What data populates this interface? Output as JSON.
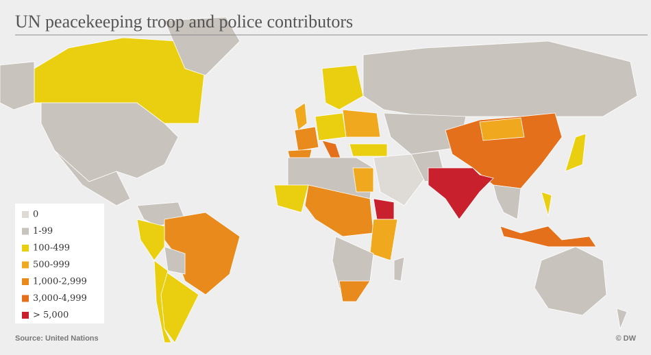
{
  "title": "UN peacekeeping troop and police contributors",
  "legend": [
    {
      "label": "0",
      "color": "#dedad5"
    },
    {
      "label": "1-99",
      "color": "#c8c3bc"
    },
    {
      "label": "100-499",
      "color": "#e9cf10"
    },
    {
      "label": "500-999",
      "color": "#f0a91e"
    },
    {
      "label": "1,000-2,999",
      "color": "#e98a1c"
    },
    {
      "label": "3,000-4,999",
      "color": "#e5701c"
    },
    {
      "label": "> 5,000",
      "color": "#c8202c"
    }
  ],
  "source": "Source: United Nations",
  "credit": "© DW"
}
